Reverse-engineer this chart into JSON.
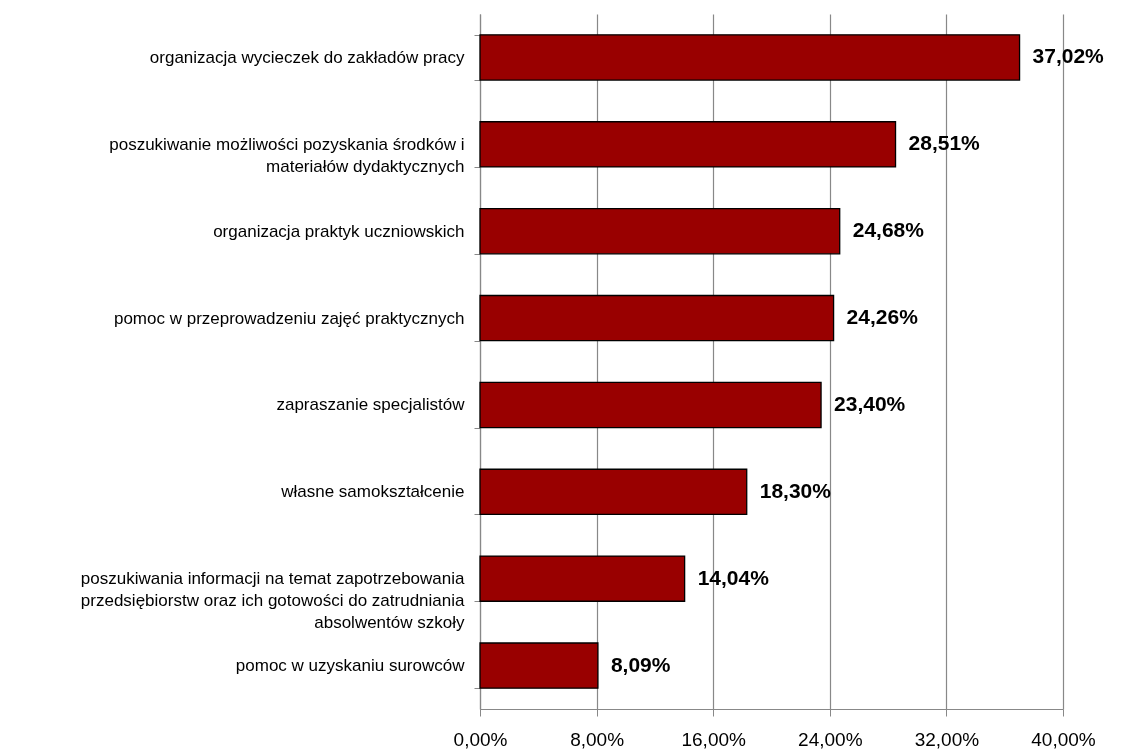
{
  "chart_data": {
    "type": "bar",
    "orientation": "horizontal",
    "categories": [
      "organizacja wycieczek do zakładów pracy",
      "poszukiwanie możliwości pozyskania środków i materiałów dydaktycznych",
      "organizacja praktyk uczniowskich",
      "pomoc w przeprowadzeniu zajęć praktycznych",
      "zapraszanie specjalistów",
      "własne samokształcenie",
      "poszukiwania informacji na temat zapotrzebowania przedsiębiorstw oraz ich gotowości do zatrudniania absolwentów szkoły",
      "pomoc w uzyskaniu surowców"
    ],
    "values": [
      37.02,
      28.51,
      24.68,
      24.26,
      23.4,
      18.3,
      14.04,
      8.09
    ],
    "color": "#990000",
    "value_labels": [
      "37,02%",
      "28,51%",
      "24,68%",
      "24,26%",
      "23,40%",
      "18,30%",
      "14,04%",
      "8,09%"
    ],
    "xlim": [
      0,
      40
    ],
    "xticks": [
      {
        "value": 0,
        "label": "0,00%"
      },
      {
        "value": 8,
        "label": "8,00%"
      },
      {
        "value": 16,
        "label": "16,00%"
      },
      {
        "value": 24,
        "label": "24,00%"
      },
      {
        "value": 32,
        "label": "32,00%"
      },
      {
        "value": 40,
        "label": "40,00%"
      }
    ],
    "grid": "x"
  }
}
